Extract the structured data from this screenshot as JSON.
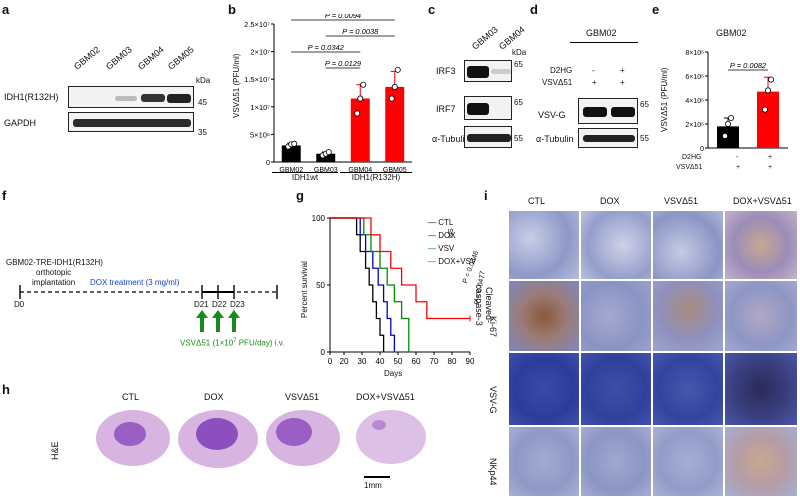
{
  "panels": {
    "a": "a",
    "b": "b",
    "c": "c",
    "d": "d",
    "e": "e",
    "f": "f",
    "g": "g",
    "h": "h",
    "i": "i"
  },
  "panel_a": {
    "samples": [
      "GBM02",
      "GBM03",
      "GBM04",
      "GBM05"
    ],
    "rows": [
      "IDH1(R132H)",
      "GAPDH"
    ],
    "kda_label": "kDa",
    "markers": [
      "45",
      "35"
    ]
  },
  "panel_b": {
    "groups": [
      "IDH1wt",
      "IDH1(R132H)"
    ],
    "pvalues": [
      "P = 0.0094",
      "P = 0.0038",
      "P = 0.0342",
      "P = 0.0129"
    ]
  },
  "panel_c": {
    "samples": [
      "GBM03",
      "GBM04"
    ],
    "rows": [
      "IRF3",
      "IRF7",
      "α-Tubulin"
    ],
    "kda_label": "kDa",
    "markers": [
      "65",
      "65",
      "55"
    ]
  },
  "panel_d": {
    "title": "GBM02",
    "conditions": [
      "D2HG",
      "VSVΔ51"
    ],
    "signs": [
      [
        "-",
        "+"
      ],
      [
        "+",
        "+"
      ]
    ],
    "rows": [
      "VSV-G",
      "α-Tubulin"
    ],
    "kda_label": "kDa",
    "markers": [
      "65",
      "55"
    ]
  },
  "panel_e": {
    "title": "GBM02",
    "pvalue": "P = 0.0082",
    "conditions": [
      "D2HG",
      "VSVΔ51"
    ],
    "signs": [
      [
        "-",
        "+"
      ],
      [
        "+",
        "+"
      ]
    ]
  },
  "panel_f": {
    "model": "GBM02-TRE-IDH1(R132H)",
    "line2": "orthotopic",
    "line3": "implantation",
    "treatment": "DOX treatment (3 mg/ml)",
    "days": [
      "D0",
      "D21",
      "D22",
      "D23"
    ],
    "virus_pre": "VSVΔ51 (1×10",
    "virus_exp": "7",
    "virus_post": " PFU/day) i.v."
  },
  "panel_g": {
    "legend_stats": [
      "NS",
      "P = 0.0346",
      "P = 0.0477"
    ]
  },
  "panel_h": {
    "groups": [
      "CTL",
      "DOX",
      "VSVΔ51",
      "DOX+VSVΔ51"
    ],
    "stain": "H&E",
    "scale": "1mm"
  },
  "panel_i": {
    "groups": [
      "CTL",
      "DOX",
      "VSVΔ51",
      "DOX+VSVΔ51"
    ],
    "stains": [
      "Cleaved-caspase-3",
      "Ki-67",
      "VSV-G",
      "NKp44"
    ]
  },
  "chart_data": [
    {
      "panel": "b",
      "type": "bar",
      "categories": [
        "GBM02",
        "GBM03",
        "GBM04",
        "GBM05"
      ],
      "values": [
        3000000,
        1500000,
        11500000,
        13600000
      ],
      "errors": [
        400000,
        300000,
        2500000,
        2800000
      ],
      "points": [
        [
          2800000,
          3200000,
          3300000
        ],
        [
          1200000,
          1500000,
          1800000
        ],
        [
          8800000,
          11500000,
          14000000
        ],
        [
          11500000,
          13600000,
          16700000
        ]
      ],
      "colors": [
        "#000000",
        "#000000",
        "#ff0000",
        "#ff0000"
      ],
      "ylabel": "VSVΔ51 (PFU/ml)",
      "ylim": [
        0,
        25000000
      ],
      "yticks": [
        0,
        5000000,
        10000000,
        15000000,
        20000000,
        25000000
      ],
      "ytick_labels": [
        "0",
        "5×10⁶",
        "1×10⁷",
        "1.5×10⁷",
        "2×10⁷",
        "2.5×10⁷"
      ],
      "yscale_label": "2.5×10⁷"
    },
    {
      "panel": "e",
      "type": "bar",
      "categories": [
        "-",
        "+"
      ],
      "values": [
        1800000,
        4700000
      ],
      "errors": [
        700000,
        1200000
      ],
      "points": [
        [
          1000000,
          2000000,
          2500000
        ],
        [
          3200000,
          4800000,
          5700000
        ]
      ],
      "colors": [
        "#000000",
        "#ff0000"
      ],
      "ylabel": "VSVΔ51 (PFU/ml)",
      "ylim": [
        0,
        8000000
      ],
      "yticks": [
        0,
        2000000,
        4000000,
        6000000,
        8000000
      ],
      "ytick_labels": [
        "0",
        "2×10⁶",
        "4×10⁶",
        "6×10⁶",
        "8×10⁶"
      ]
    },
    {
      "panel": "g",
      "type": "line",
      "xlabel": "Days",
      "ylabel": "Percent survival",
      "xlim": [
        0,
        90
      ],
      "ylim": [
        0,
        100
      ],
      "xticks": [
        0,
        20,
        30,
        40,
        50,
        60,
        70,
        80,
        90
      ],
      "yticks": [
        0,
        50,
        100
      ],
      "series": [
        {
          "name": "CTL",
          "color": "#000000",
          "x": [
            0,
            25,
            27,
            29,
            32,
            34,
            36,
            38,
            40,
            42
          ],
          "y": [
            100,
            100,
            87.5,
            75,
            62.5,
            50,
            37.5,
            25,
            12.5,
            0
          ]
        },
        {
          "name": "DOX",
          "color": "#0000cc",
          "x": [
            0,
            26,
            29,
            32,
            36,
            39,
            42,
            44,
            46,
            48
          ],
          "y": [
            100,
            100,
            87.5,
            75,
            62.5,
            50,
            37.5,
            25,
            12.5,
            0
          ]
        },
        {
          "name": "VSV",
          "color": "#008800",
          "x": [
            0,
            27,
            31,
            35,
            40,
            44,
            48,
            52,
            56
          ],
          "y": [
            100,
            100,
            87.5,
            75,
            62.5,
            50,
            37.5,
            25,
            0
          ]
        },
        {
          "name": "DOX+VSV",
          "color": "#ff0000",
          "x": [
            0,
            30,
            35,
            40,
            46,
            52,
            60,
            66,
            90
          ],
          "y": [
            100,
            100,
            87.5,
            75,
            62.5,
            50,
            37.5,
            25,
            25
          ]
        }
      ]
    }
  ]
}
